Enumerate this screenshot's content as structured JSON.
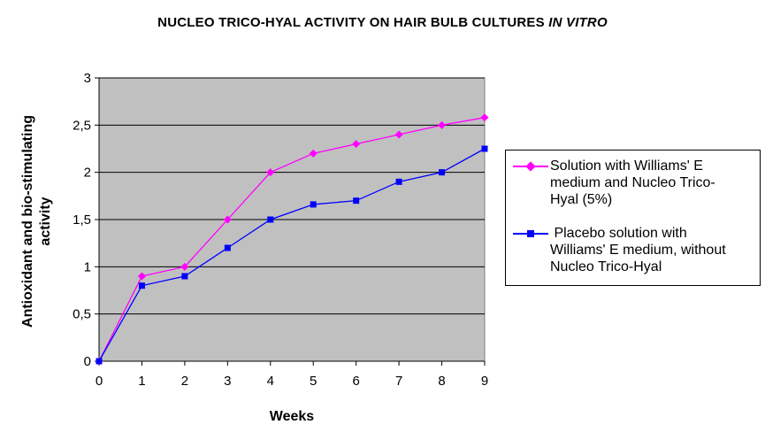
{
  "title": "NUCLEO TRICO-HYAL ACTIVITY ON HAIR BULB CULTURES",
  "title_italic": "IN VITRO",
  "chart_data": {
    "type": "line",
    "x": [
      0,
      1,
      2,
      3,
      4,
      5,
      6,
      7,
      8,
      9
    ],
    "x_tick_labels": [
      "0",
      "1",
      "2",
      "3",
      "4",
      "5",
      "6",
      "7",
      "8",
      "9"
    ],
    "y_tick_labels": [
      "0",
      "0,5",
      "1",
      "1,5",
      "2",
      "2,5",
      "3"
    ],
    "xlabel": "Weeks",
    "ylabel_line1": "Antioxidant and bio-stimulating",
    "ylabel_line2": "activity",
    "xlim": [
      0,
      9
    ],
    "ylim": [
      0,
      3
    ],
    "grid": "horizontal",
    "plot_background": "#c0c0c0",
    "legend_position": "right",
    "series": [
      {
        "name": "Solution with Williams' E medium and  Nucleo Trico-Hyal (5%)",
        "legend_lines": [
          "Solution with Williams' E",
          "medium and  Nucleo Trico-",
          "Hyal (5%)"
        ],
        "color": "#ff00ff",
        "marker": "diamond",
        "values": [
          0,
          0.9,
          1.0,
          1.5,
          2.0,
          2.2,
          2.3,
          2.4,
          2.5,
          2.58
        ]
      },
      {
        "name": " Placebo solution with Williams' E medium, without Nucleo Trico-Hyal",
        "legend_lines": [
          " Placebo solution with",
          "Williams' E medium, without",
          "Nucleo Trico-Hyal"
        ],
        "color": "#0000ff",
        "marker": "square",
        "values": [
          0,
          0.8,
          0.9,
          1.2,
          1.5,
          1.66,
          1.7,
          1.9,
          2.0,
          2.25
        ]
      }
    ]
  }
}
